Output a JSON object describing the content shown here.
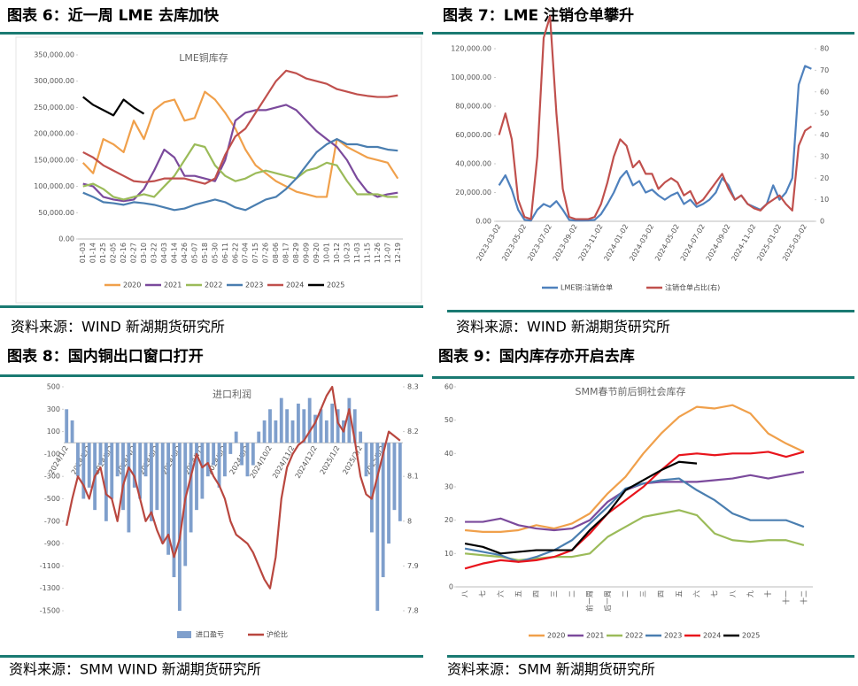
{
  "headings": [
    "图表 6：近一周 LME 去库加快",
    "图表 7：LME 注销仓单攀升",
    "图表 8：国内铜出口窗口打开",
    "图表 9：国内库存亦开启去库"
  ],
  "sources": [
    "资料来源：WIND  新湖期货研究所",
    "资料来源：WIND  新湖期货研究所",
    "资料来源：SMM WIND  新湖期货研究所",
    "资料来源：SMM  新湖期货研究所"
  ],
  "chart_data": [
    {
      "type": "line",
      "title": "LME铜库存",
      "categories": [
        "01-03",
        "01-14",
        "01-25",
        "02-05",
        "02-16",
        "02-27",
        "03-10",
        "03-22",
        "04-03",
        "04-14",
        "04-26",
        "05-07",
        "05-18",
        "05-30",
        "06-11",
        "06-22",
        "07-04",
        "07-15",
        "07-26",
        "08-06",
        "08-17",
        "08-29",
        "09-09",
        "09-20",
        "10-01",
        "10-12",
        "10-23",
        "11-03",
        "11-15",
        "11-26",
        "12-07",
        "12-19"
      ],
      "ylim": [
        0,
        350000
      ],
      "yticks": [
        {
          "value": 0,
          "label": "0.00"
        },
        {
          "value": 50000,
          "label": "50,000.00"
        },
        {
          "value": 100000,
          "label": "100,000.00"
        },
        {
          "value": 150000,
          "label": "150,000.00"
        },
        {
          "value": 200000,
          "label": "200,000.00"
        },
        {
          "value": 250000,
          "label": "250,000.00"
        },
        {
          "value": 300000,
          "label": "300,000.00"
        },
        {
          "value": 350000,
          "label": "350,000.00"
        }
      ],
      "grid": false,
      "legend": "bottom",
      "series": [
        {
          "name": "2020",
          "color": "#f0a04b",
          "values": [
            145000,
            125000,
            190000,
            180000,
            165000,
            225000,
            190000,
            245000,
            260000,
            265000,
            225000,
            230000,
            280000,
            265000,
            240000,
            210000,
            170000,
            140000,
            125000,
            110000,
            100000,
            90000,
            85000,
            80000,
            80000,
            190000,
            175000,
            165000,
            155000,
            150000,
            145000,
            115000
          ]
        },
        {
          "name": "2021",
          "color": "#7b4a9c",
          "values": [
            105000,
            100000,
            80000,
            75000,
            72000,
            75000,
            95000,
            130000,
            170000,
            155000,
            120000,
            120000,
            115000,
            110000,
            150000,
            225000,
            240000,
            245000,
            245000,
            250000,
            255000,
            245000,
            225000,
            205000,
            190000,
            175000,
            150000,
            115000,
            90000,
            80000,
            85000,
            88000
          ]
        },
        {
          "name": "2022",
          "color": "#9bbb59",
          "values": [
            100000,
            105000,
            95000,
            80000,
            75000,
            80000,
            85000,
            80000,
            100000,
            120000,
            150000,
            180000,
            175000,
            140000,
            120000,
            110000,
            115000,
            125000,
            130000,
            125000,
            120000,
            115000,
            130000,
            135000,
            145000,
            140000,
            110000,
            85000,
            85000,
            85000,
            80000,
            80000
          ]
        },
        {
          "name": "2023",
          "color": "#4a7eb0",
          "values": [
            88000,
            80000,
            70000,
            68000,
            65000,
            70000,
            68000,
            65000,
            60000,
            55000,
            58000,
            65000,
            70000,
            75000,
            70000,
            60000,
            55000,
            65000,
            75000,
            80000,
            95000,
            115000,
            140000,
            165000,
            180000,
            190000,
            180000,
            180000,
            175000,
            175000,
            170000,
            168000
          ]
        },
        {
          "name": "2024",
          "color": "#c0504d",
          "values": [
            165000,
            155000,
            140000,
            130000,
            120000,
            110000,
            108000,
            110000,
            115000,
            115000,
            115000,
            110000,
            105000,
            115000,
            160000,
            195000,
            210000,
            240000,
            270000,
            300000,
            320000,
            315000,
            305000,
            300000,
            295000,
            285000,
            280000,
            275000,
            272000,
            270000,
            270000,
            273000
          ]
        },
        {
          "name": "2025",
          "color": "#000000",
          "values": [
            270000,
            255000,
            245000,
            235000,
            265000,
            250000,
            238000,
            null,
            null,
            null,
            null,
            null,
            null,
            null,
            null,
            null,
            null,
            null,
            null,
            null,
            null,
            null,
            null,
            null,
            null,
            null,
            null,
            null,
            null,
            null,
            null,
            null
          ]
        }
      ]
    },
    {
      "type": "line",
      "categories": [
        "2023-03-02",
        null,
        null,
        null,
        "2023-05-02",
        null,
        null,
        null,
        "2023-07-02",
        null,
        null,
        null,
        "2023-09-02",
        null,
        null,
        null,
        "2023-11-02",
        null,
        null,
        null,
        "2024-01-02",
        null,
        null,
        null,
        "2024-03-02",
        null,
        null,
        null,
        "2024-05-02",
        null,
        null,
        null,
        "2024-07-02",
        null,
        null,
        null,
        "2024-09-02",
        null,
        null,
        null,
        "2024-11-02",
        null,
        null,
        null,
        "2025-01-02",
        null,
        null,
        null,
        "2025-03-02",
        null
      ],
      "ylim": [
        0,
        120000
      ],
      "yticks": [
        {
          "value": 0,
          "label": "0.00"
        },
        {
          "value": 20000,
          "label": "20,000.00"
        },
        {
          "value": 40000,
          "label": "40,000.00"
        },
        {
          "value": 60000,
          "label": "60,000.00"
        },
        {
          "value": 80000,
          "label": "80,000.00"
        },
        {
          "value": 100000,
          "label": "100,000.00"
        },
        {
          "value": 120000,
          "label": "120,000.00"
        }
      ],
      "y2lim": [
        0,
        80
      ],
      "y2ticks": [
        0,
        10,
        20,
        30,
        40,
        50,
        60,
        70,
        80
      ],
      "grid": false,
      "legend": "bottom",
      "series": [
        {
          "name": "LME铜:注销仓单",
          "color": "#4f81bd",
          "values": [
            25000,
            32000,
            22000,
            8000,
            1000,
            500,
            8000,
            12000,
            10000,
            14000,
            8000,
            1000,
            500,
            500,
            600,
            1000,
            5000,
            12000,
            20000,
            30000,
            35000,
            25000,
            28000,
            20000,
            22000,
            18000,
            15000,
            18000,
            20000,
            12000,
            15000,
            10000,
            12000,
            15000,
            20000,
            30000,
            25000,
            15000,
            18000,
            12000,
            10000,
            8000,
            12000,
            25000,
            15000,
            20000,
            30000,
            95000,
            108000,
            106000
          ]
        },
        {
          "name": "注销仓单占比(右)",
          "color": "#c0504d",
          "axis": "y2",
          "values": [
            40,
            50,
            38,
            10,
            2,
            1,
            30,
            85,
            95,
            50,
            15,
            2,
            1,
            1,
            1,
            2,
            8,
            18,
            30,
            38,
            35,
            25,
            28,
            22,
            22,
            15,
            18,
            20,
            18,
            12,
            14,
            8,
            10,
            14,
            18,
            22,
            15,
            10,
            12,
            8,
            6,
            5,
            8,
            10,
            12,
            8,
            5,
            35,
            42,
            44
          ]
        }
      ]
    },
    {
      "type": "combo",
      "title": "进口利润",
      "categories": [
        "2024/1/2",
        null,
        null,
        null,
        "2024/2/2",
        null,
        null,
        null,
        "2024/3/2",
        null,
        null,
        null,
        "2024/4/2",
        null,
        null,
        null,
        "2024/5/2",
        null,
        null,
        null,
        "2024/6/2",
        null,
        null,
        null,
        "2024/7/2",
        null,
        null,
        null,
        "2024/8/2",
        null,
        null,
        null,
        "2024/9/2",
        null,
        null,
        null,
        "2024/10/2",
        null,
        null,
        null,
        "2024/11/2",
        null,
        null,
        null,
        "2024/12/2",
        null,
        null,
        null,
        "2025/1/2",
        null,
        null,
        null,
        "2025/2/2",
        null,
        null,
        null,
        "2025/3/2",
        null,
        null,
        null
      ],
      "ylim": [
        -1500,
        500
      ],
      "yticks": [
        500,
        300,
        100,
        -100,
        -300,
        -500,
        -700,
        -900,
        -1100,
        -1300,
        -1500
      ],
      "y2lim": [
        7.8,
        8.3
      ],
      "y2ticks": [
        8.3,
        8.2,
        8.1,
        8,
        7.9,
        7.8
      ],
      "grid": false,
      "legend": "bottom",
      "series": [
        {
          "name": "进口盈亏",
          "type": "bar",
          "color": "#7f9fcc",
          "values": [
            300,
            200,
            -300,
            -500,
            -400,
            -600,
            -200,
            -700,
            -500,
            -300,
            -600,
            -800,
            -400,
            -500,
            -300,
            -700,
            -600,
            -900,
            -1000,
            -1200,
            -1500,
            -1100,
            -800,
            -600,
            -500,
            -300,
            -200,
            -400,
            -300,
            -100,
            100,
            -200,
            -300,
            -200,
            100,
            200,
            300,
            200,
            400,
            300,
            200,
            350,
            300,
            400,
            250,
            300,
            200,
            350,
            300,
            200,
            400,
            300,
            100,
            -300,
            -800,
            -1500,
            -1200,
            -900,
            -600,
            -700
          ]
        },
        {
          "name": "沪伦比",
          "type": "line",
          "axis": "y2",
          "color": "#b9473f",
          "values": [
            7.99,
            8.05,
            8.1,
            8.08,
            8.05,
            8.1,
            8.12,
            8.06,
            8.05,
            8.0,
            8.08,
            8.12,
            8.1,
            8.05,
            8.0,
            8.02,
            7.98,
            7.95,
            7.97,
            7.92,
            7.96,
            8.05,
            8.1,
            8.15,
            8.12,
            8.13,
            8.1,
            8.08,
            8.05,
            8.0,
            7.97,
            7.96,
            7.95,
            7.93,
            7.9,
            7.87,
            7.85,
            7.92,
            8.05,
            8.12,
            8.15,
            8.17,
            8.18,
            8.2,
            8.22,
            8.25,
            8.28,
            8.3,
            8.22,
            8.2,
            8.25,
            8.18,
            8.1,
            8.06,
            8.05,
            8.1,
            8.15,
            8.2,
            8.19,
            8.18
          ]
        }
      ]
    },
    {
      "type": "line",
      "title": "SMM春节前后铜社会库存",
      "categories": [
        "八",
        "七",
        "六",
        "五",
        "四",
        "三",
        "二",
        "前一周",
        "后一周",
        "二",
        "三",
        "四",
        "五",
        "六",
        "七",
        "八",
        "九",
        "十",
        "十一",
        "十二"
      ],
      "ylim": [
        0,
        60
      ],
      "yticks": [
        0,
        10,
        20,
        30,
        40,
        50,
        60
      ],
      "grid": false,
      "legend": "bottom",
      "series": [
        {
          "name": "2020",
          "color": "#f0a04b",
          "values": [
            17,
            16.5,
            16.5,
            17,
            18.5,
            17.5,
            19,
            22,
            28,
            33,
            40,
            46,
            51,
            54,
            53.5,
            54.5,
            52,
            46,
            43,
            40.5
          ]
        },
        {
          "name": "2021",
          "color": "#7b4a9c",
          "values": [
            19.5,
            19.5,
            20.5,
            18.5,
            17.5,
            17,
            17.5,
            20,
            25.5,
            29,
            31,
            31.5,
            31.5,
            31.5,
            32,
            32.5,
            33.5,
            32.5,
            33.5,
            34.5
          ]
        },
        {
          "name": "2022",
          "color": "#9bbb59",
          "values": [
            10,
            9.5,
            9,
            8,
            8.5,
            9,
            9,
            10,
            15,
            18,
            21,
            22,
            23,
            21.5,
            16,
            14,
            13.5,
            14,
            14,
            12.5
          ]
        },
        {
          "name": "2023",
          "color": "#4a7eb0",
          "values": [
            11.5,
            10.5,
            9.5,
            7.5,
            9,
            11,
            14,
            19,
            24,
            29.5,
            31,
            32,
            32.5,
            29,
            26,
            22,
            20,
            20,
            20,
            18
          ]
        },
        {
          "name": "2024",
          "color": "#e8141c",
          "values": [
            5.5,
            7,
            8,
            7.5,
            8,
            9,
            11,
            16,
            22,
            26,
            30,
            35,
            39.5,
            40,
            39.5,
            40,
            40,
            40.5,
            39,
            40.5
          ]
        },
        {
          "name": "2025",
          "color": "#000000",
          "values": [
            13,
            12,
            10,
            10.5,
            11,
            11,
            11,
            17,
            22,
            29,
            32,
            35,
            37.5,
            37,
            null,
            null,
            null,
            null,
            null,
            null
          ]
        }
      ]
    }
  ]
}
